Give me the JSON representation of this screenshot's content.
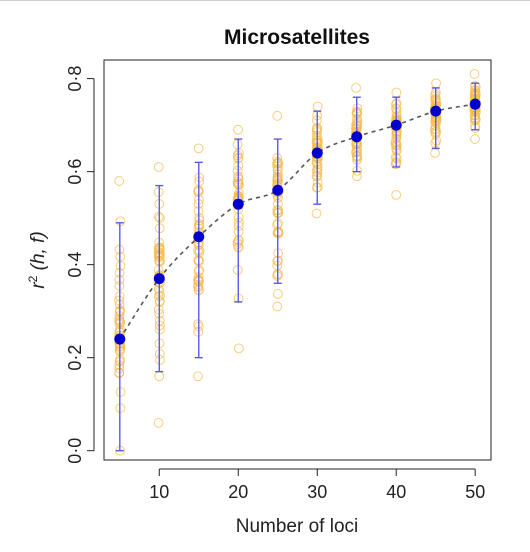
{
  "chart_data": {
    "type": "scatter",
    "title": "Microsatellites",
    "xlabel": "Number of loci",
    "ylabel": {
      "base": "r",
      "sup": "2",
      "rest": " (h, f)"
    },
    "xlim": [
      3,
      52
    ],
    "ylim": [
      -0.02,
      0.84
    ],
    "xticks": [
      "10",
      "20",
      "30",
      "40",
      "50"
    ],
    "xtick_values": [
      10,
      20,
      30,
      40,
      50
    ],
    "yticks": [
      "0·0",
      "0·2",
      "0·4",
      "0·6",
      "0·8"
    ],
    "ytick_values": [
      0.0,
      0.2,
      0.4,
      0.6,
      0.8
    ],
    "grid": false,
    "legend": "none",
    "colors": {
      "points": "#f5be50",
      "mean": "#0000cc",
      "errorbar": "#5a5af0",
      "trend": "#555555"
    },
    "series": [
      {
        "kind": "mean",
        "x": [
          5,
          10,
          15,
          20,
          25,
          30,
          35,
          40,
          45,
          50
        ],
        "y": [
          0.24,
          0.37,
          0.46,
          0.53,
          0.56,
          0.64,
          0.675,
          0.7,
          0.73,
          0.745
        ],
        "y_low": [
          0.0,
          0.17,
          0.2,
          0.32,
          0.36,
          0.53,
          0.6,
          0.61,
          0.65,
          0.69
        ],
        "y_high": [
          0.49,
          0.57,
          0.62,
          0.67,
          0.67,
          0.73,
          0.76,
          0.76,
          0.78,
          0.79
        ]
      },
      {
        "kind": "replicates",
        "x": [
          5,
          10,
          15,
          20,
          25,
          30,
          35,
          40,
          45,
          50
        ],
        "y_min": [
          0.0,
          0.06,
          0.16,
          0.22,
          0.31,
          0.51,
          0.59,
          0.55,
          0.64,
          0.67
        ],
        "y_max": [
          0.58,
          0.61,
          0.65,
          0.69,
          0.72,
          0.74,
          0.78,
          0.77,
          0.79,
          0.81
        ]
      }
    ]
  }
}
